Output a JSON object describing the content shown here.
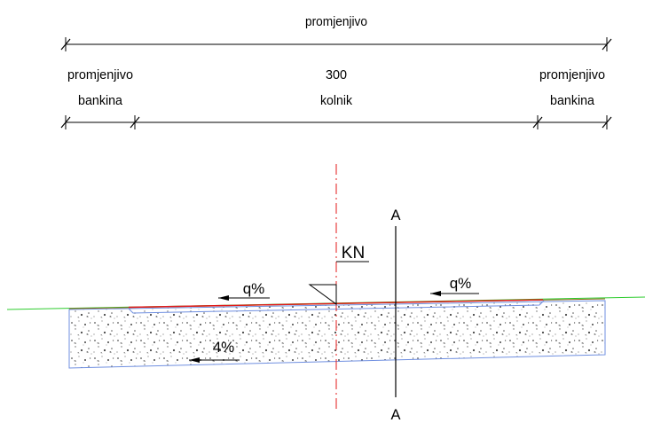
{
  "dimensions": {
    "overall": {
      "label": "promjenjivo"
    },
    "left": {
      "line1": "promjenjivo",
      "line2": "bankina"
    },
    "center": {
      "line1": "300",
      "line2": "kolnik"
    },
    "right": {
      "line1": "promjenjivo",
      "line2": "bankina"
    }
  },
  "section": {
    "axis_label": "KN",
    "slope_left": "q%",
    "slope_right": "q%",
    "base_slope": "4%",
    "cut_top": "A",
    "cut_bottom": "A"
  },
  "colors": {
    "road_surface": "#e31a1a",
    "terrain": "#2ecc2e",
    "layer_outline": "#6f8fe0",
    "axis": "#e31a1a",
    "ink": "#000000"
  }
}
